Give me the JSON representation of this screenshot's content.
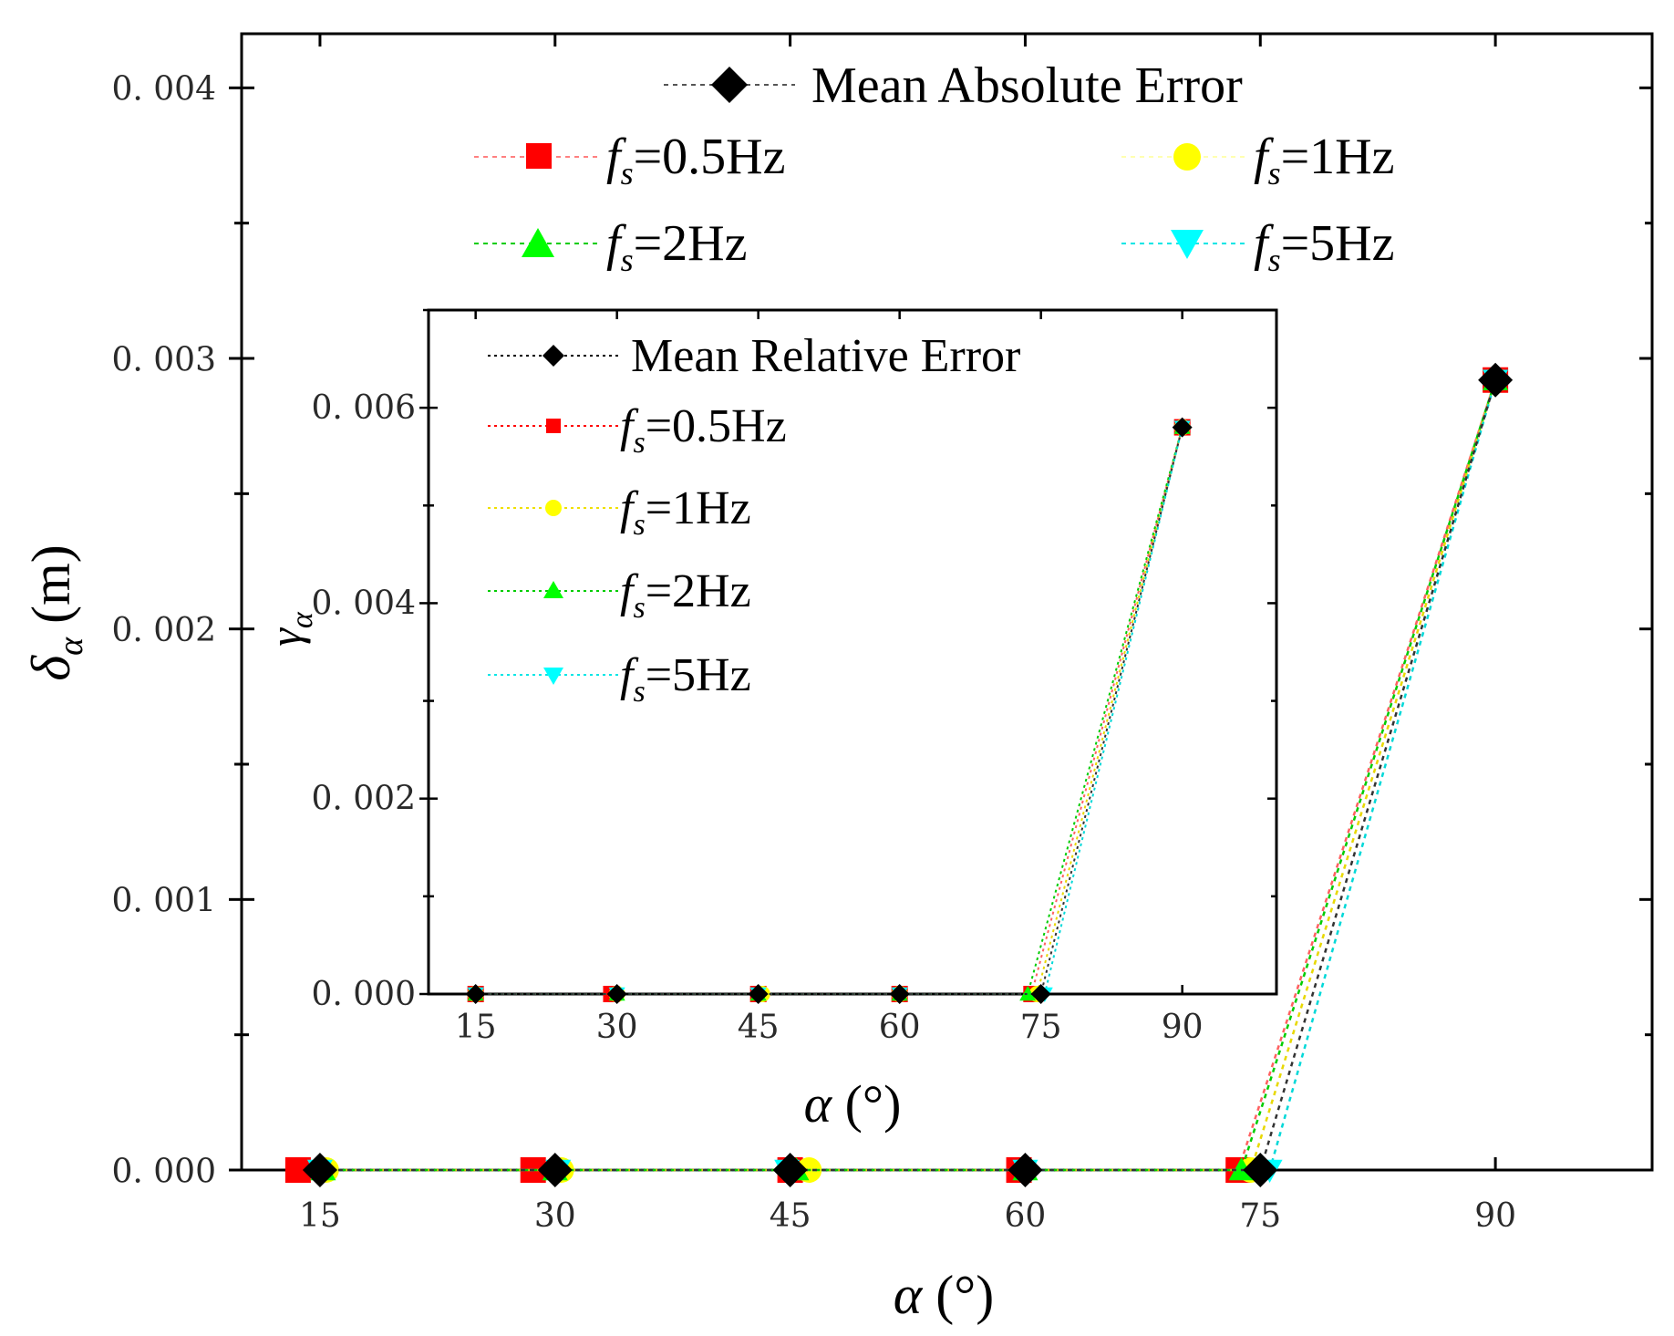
{
  "chart_data": [
    {
      "type": "line",
      "role": "main",
      "xlabel": "α (°)",
      "ylabel": "δα (m)",
      "ylabel_main": "δ",
      "ylabel_sub": "α",
      "ylabel_unit": " (m)",
      "xlabel_main": "α",
      "xlabel_unit": " (°)",
      "x_ticks": [
        15,
        30,
        45,
        60,
        75,
        90
      ],
      "y_ticks": [
        0.0,
        0.001,
        0.002,
        0.003,
        0.004
      ],
      "y_tick_labels": [
        "0. 000",
        "0. 001",
        "0. 002",
        "0. 003",
        "0. 004"
      ],
      "xlim": [
        10,
        100
      ],
      "ylim": [
        0,
        0.0042
      ],
      "series": [
        {
          "name": "Mean Absolute Error",
          "marker": "diamond",
          "color": "#000000",
          "x": [
            15,
            30,
            45,
            60,
            75,
            90
          ],
          "values": [
            0.0,
            0.0,
            0.0,
            0.0,
            0.0,
            0.00292
          ]
        },
        {
          "name": "fs=0.5Hz",
          "marker": "square",
          "color": "#ff0000",
          "x": [
            13.6,
            28.6,
            45,
            59.6,
            73.6,
            90
          ],
          "values": [
            0.0,
            0.0,
            0.0,
            0.0,
            0.0,
            0.00292
          ]
        },
        {
          "name": "fs=1Hz",
          "marker": "circle",
          "color": "#ffff00",
          "x": [
            15.4,
            30.4,
            46.2,
            60,
            74.4,
            90
          ],
          "values": [
            0.0,
            0.0,
            0.0,
            0.0,
            0.0,
            0.00292
          ]
        },
        {
          "name": "fs=2Hz",
          "marker": "triangle-up",
          "color": "#00ff00",
          "x": [
            15.2,
            30,
            45.4,
            60,
            73.8,
            90
          ],
          "values": [
            0.0,
            0.0,
            0.0,
            0.0,
            0.0,
            0.00292
          ]
        },
        {
          "name": "fs=5Hz",
          "marker": "triangle-down",
          "color": "#00ffff",
          "x": [
            15,
            30.2,
            44.8,
            60,
            75.6,
            90
          ],
          "values": [
            0.0,
            0.0,
            0.0,
            0.0,
            0.0,
            0.00292
          ]
        }
      ],
      "legend": {
        "title_entry": "Mean Absolute Error",
        "entries": [
          {
            "prefix": "f",
            "sub": "s",
            "rest": "=0.5Hz"
          },
          {
            "prefix": "f",
            "sub": "s",
            "rest": "=1Hz"
          },
          {
            "prefix": "f",
            "sub": "s",
            "rest": "=2Hz"
          },
          {
            "prefix": "f",
            "sub": "s",
            "rest": "=5Hz"
          }
        ],
        "placement": "top"
      }
    },
    {
      "type": "line",
      "role": "inset",
      "xlabel": "α (°)",
      "ylabel": "γα",
      "ylabel_main": "γ",
      "ylabel_sub": "α",
      "xlabel_main": "α",
      "xlabel_unit": " (°)",
      "x_ticks": [
        15,
        30,
        45,
        60,
        75,
        90
      ],
      "y_ticks": [
        0.0,
        0.002,
        0.004,
        0.006
      ],
      "y_tick_labels": [
        "0. 000",
        "0. 002",
        "0. 004",
        "0. 006"
      ],
      "xlim": [
        10,
        100
      ],
      "ylim": [
        0,
        0.007
      ],
      "series": [
        {
          "name": "Mean Relative Error",
          "marker": "diamond",
          "color": "#000000",
          "x": [
            15,
            30,
            45,
            60,
            75,
            90
          ],
          "values": [
            0.0,
            0.0,
            0.0,
            0.0,
            0.0,
            0.0058
          ]
        },
        {
          "name": "fs=0.5Hz",
          "marker": "square",
          "color": "#ff0000",
          "x": [
            15,
            29.4,
            45,
            60,
            74,
            90
          ],
          "values": [
            0.0,
            0.0,
            0.0,
            0.0,
            0.0,
            0.0058
          ]
        },
        {
          "name": "fs=1Hz",
          "marker": "circle",
          "color": "#ffff00",
          "x": [
            15,
            30,
            45.4,
            60,
            74.6,
            90
          ],
          "values": [
            0.0,
            0.0,
            0.0,
            0.0,
            0.0,
            0.0058
          ]
        },
        {
          "name": "fs=2Hz",
          "marker": "triangle-up",
          "color": "#00ff00",
          "x": [
            15,
            30,
            45,
            60,
            73.6,
            90
          ],
          "values": [
            0.0,
            0.0,
            0.0,
            0.0,
            0.0,
            0.0058
          ]
        },
        {
          "name": "fs=5Hz",
          "marker": "triangle-down",
          "color": "#00ffff",
          "x": [
            15,
            30,
            45,
            60,
            75.4,
            90
          ],
          "values": [
            0.0,
            0.0,
            0.0,
            0.0,
            0.0,
            0.0058
          ]
        }
      ],
      "legend": {
        "title_entry": "Mean Relative Error",
        "entries": [
          {
            "prefix": "f",
            "sub": "s",
            "rest": "=0.5Hz"
          },
          {
            "prefix": "f",
            "sub": "s",
            "rest": "=1Hz"
          },
          {
            "prefix": "f",
            "sub": "s",
            "rest": "=2Hz"
          },
          {
            "prefix": "f",
            "sub": "s",
            "rest": "=5Hz"
          }
        ],
        "placement": "top-left"
      }
    }
  ]
}
